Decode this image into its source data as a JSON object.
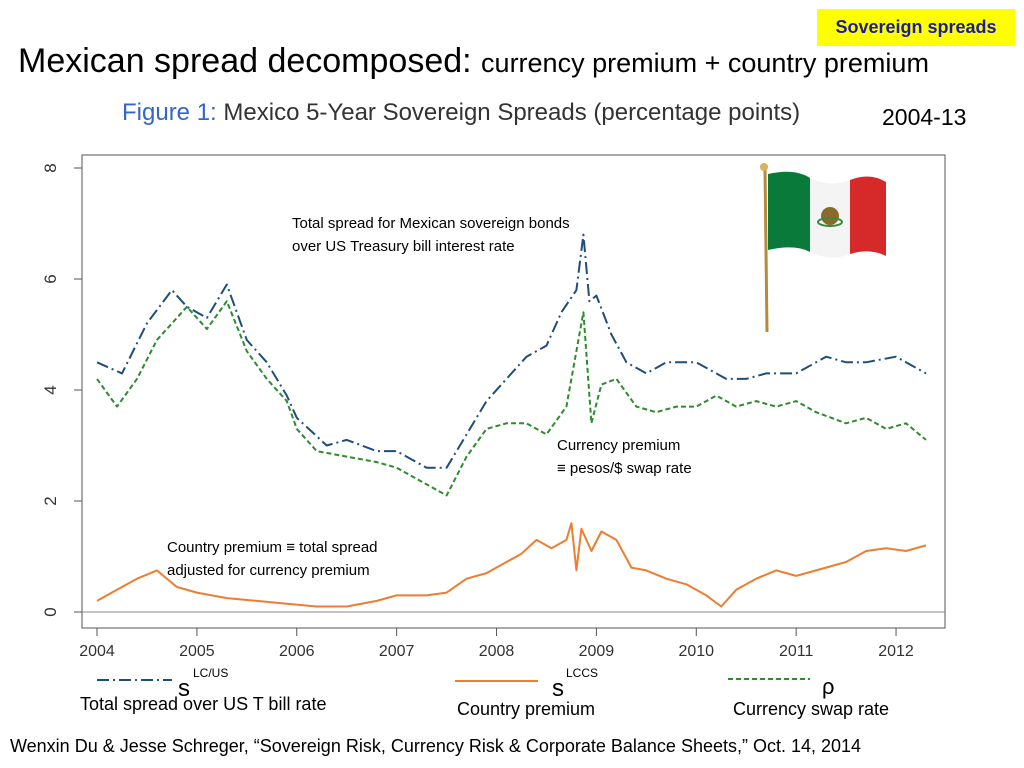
{
  "badge": "Sovereign spreads",
  "slide_title": {
    "main": "Mexican spread decomposed: ",
    "sub": "currency premium + country premium"
  },
  "figure_title": {
    "prefix": "Figure 1:",
    "text": "Mexico 5-Year Sovereign Spreads (percentage points)"
  },
  "period": "2004-13",
  "annotations": {
    "total_line1": "Total spread for Mexican sovereign bonds",
    "total_line2": "over US Treasury bill interest rate",
    "currency_line1": "Currency premium",
    "currency_line2": "≡  pesos/$ swap rate",
    "country_line1": "Country premium ≡ total spread",
    "country_line2": "adjusted for currency premium"
  },
  "legend_labels": {
    "total": "Total spread over US T bill rate",
    "country": "Country premium",
    "swap": "Currency swap rate"
  },
  "citation": "Wenxin Du & Jesse Schreger, “Sovereign Risk, Currency Risk & Corporate Balance Sheets,” Oct. 14, 2014",
  "chart_data": {
    "type": "line",
    "title": "Mexico 5-Year Sovereign Spreads (percentage points)",
    "xlim": [
      2004,
      2012.4
    ],
    "ylim": [
      0,
      8
    ],
    "x_ticks": [
      "2004",
      "2005",
      "2006",
      "2007",
      "2008",
      "2009",
      "2010",
      "2011",
      "2012"
    ],
    "y_ticks": [
      "0",
      "2",
      "4",
      "6",
      "8"
    ],
    "grid": false,
    "legend_position": "bottom",
    "series": [
      {
        "name": "s^LC/US",
        "color": "#1f4e79",
        "style": "dash-dot",
        "x": [
          2004.0,
          2004.25,
          2004.5,
          2004.75,
          2004.9,
          2005.1,
          2005.3,
          2005.5,
          2005.7,
          2005.9,
          2006.0,
          2006.3,
          2006.5,
          2006.8,
          2007.0,
          2007.3,
          2007.5,
          2007.7,
          2007.9,
          2008.1,
          2008.3,
          2008.5,
          2008.65,
          2008.8,
          2008.87,
          2008.93,
          2009.0,
          2009.15,
          2009.3,
          2009.5,
          2009.7,
          2010.0,
          2010.3,
          2010.5,
          2010.7,
          2011.0,
          2011.3,
          2011.5,
          2011.7,
          2012.0,
          2012.3
        ],
        "values": [
          4.5,
          4.3,
          5.2,
          5.8,
          5.5,
          5.3,
          5.9,
          4.9,
          4.5,
          3.9,
          3.5,
          3.0,
          3.1,
          2.9,
          2.9,
          2.6,
          2.6,
          3.2,
          3.8,
          4.2,
          4.6,
          4.8,
          5.4,
          5.8,
          6.8,
          5.6,
          5.7,
          5.0,
          4.5,
          4.3,
          4.5,
          4.5,
          4.2,
          4.2,
          4.3,
          4.3,
          4.6,
          4.5,
          4.5,
          4.6,
          4.3
        ]
      },
      {
        "name": "s^LCCS",
        "color": "#ed7d31",
        "style": "solid",
        "x": [
          2004.0,
          2004.2,
          2004.4,
          2004.6,
          2004.8,
          2005.0,
          2005.3,
          2005.6,
          2005.9,
          2006.2,
          2006.5,
          2006.8,
          2007.0,
          2007.3,
          2007.5,
          2007.7,
          2007.9,
          2008.1,
          2008.25,
          2008.4,
          2008.55,
          2008.7,
          2008.75,
          2008.8,
          2008.85,
          2008.95,
          2009.05,
          2009.2,
          2009.35,
          2009.5,
          2009.7,
          2009.9,
          2010.1,
          2010.25,
          2010.4,
          2010.6,
          2010.8,
          2011.0,
          2011.2,
          2011.5,
          2011.7,
          2011.9,
          2012.1,
          2012.3
        ],
        "values": [
          0.2,
          0.4,
          0.6,
          0.75,
          0.45,
          0.35,
          0.25,
          0.2,
          0.15,
          0.1,
          0.1,
          0.2,
          0.3,
          0.3,
          0.35,
          0.6,
          0.7,
          0.9,
          1.05,
          1.3,
          1.15,
          1.3,
          1.6,
          0.75,
          1.5,
          1.1,
          1.45,
          1.3,
          0.8,
          0.75,
          0.6,
          0.5,
          0.3,
          0.1,
          0.4,
          0.6,
          0.75,
          0.65,
          0.75,
          0.9,
          1.1,
          1.15,
          1.1,
          1.2
        ]
      },
      {
        "name": "ρ",
        "color": "#2e8b2e",
        "style": "dashed",
        "x": [
          2004.0,
          2004.2,
          2004.4,
          2004.6,
          2004.9,
          2005.1,
          2005.3,
          2005.5,
          2005.7,
          2005.9,
          2006.0,
          2006.2,
          2006.5,
          2006.8,
          2007.0,
          2007.3,
          2007.5,
          2007.7,
          2007.9,
          2008.1,
          2008.3,
          2008.5,
          2008.7,
          2008.87,
          2008.95,
          2009.05,
          2009.2,
          2009.4,
          2009.6,
          2009.8,
          2010.0,
          2010.2,
          2010.4,
          2010.6,
          2010.8,
          2011.0,
          2011.2,
          2011.5,
          2011.7,
          2011.9,
          2012.1,
          2012.3
        ],
        "values": [
          4.2,
          3.7,
          4.2,
          4.9,
          5.5,
          5.1,
          5.6,
          4.7,
          4.2,
          3.8,
          3.3,
          2.9,
          2.8,
          2.7,
          2.6,
          2.3,
          2.1,
          2.8,
          3.3,
          3.4,
          3.4,
          3.2,
          3.7,
          5.4,
          3.4,
          4.1,
          4.2,
          3.7,
          3.6,
          3.7,
          3.7,
          3.9,
          3.7,
          3.8,
          3.7,
          3.8,
          3.6,
          3.4,
          3.5,
          3.3,
          3.4,
          3.1
        ]
      }
    ]
  }
}
